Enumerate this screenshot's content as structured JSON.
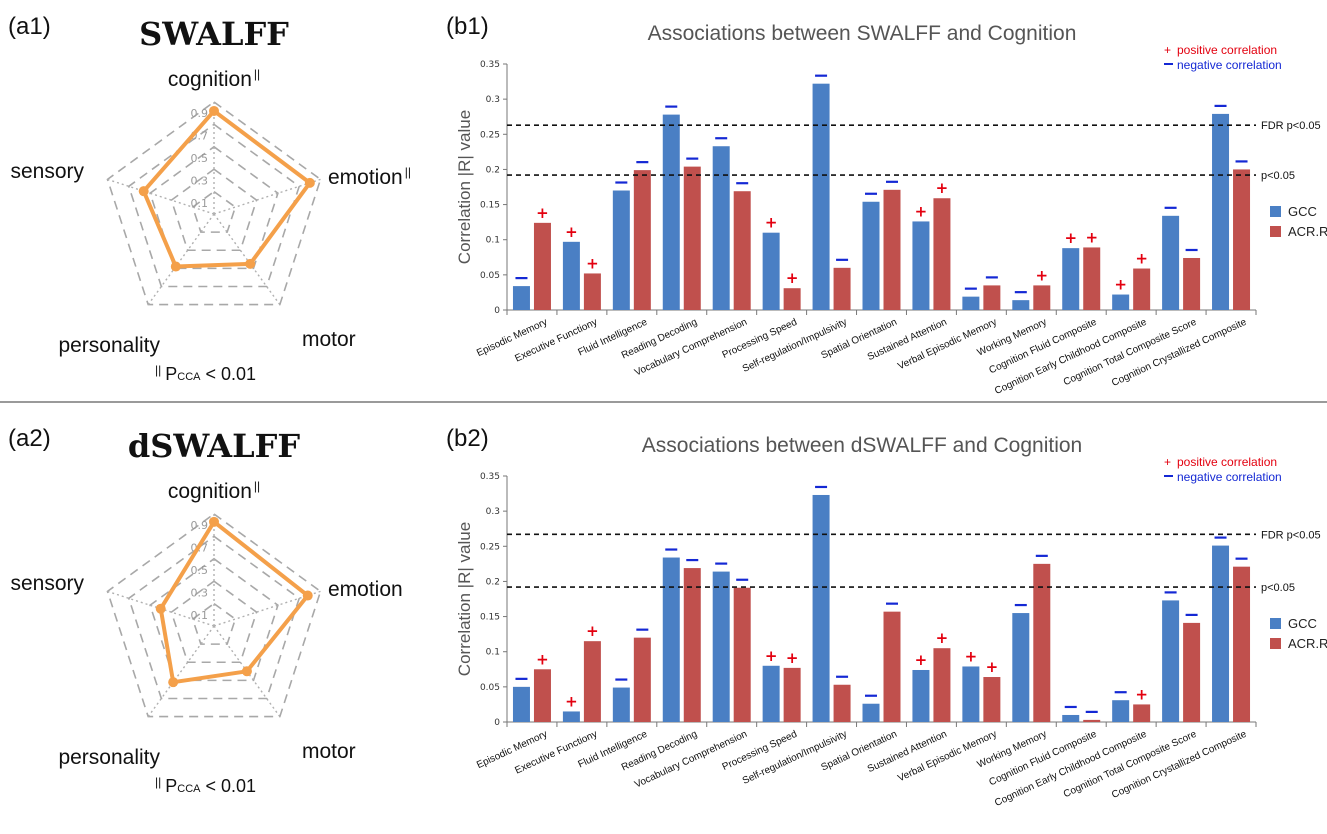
{
  "colors": {
    "gcc": "#4a7fc4",
    "acr": "#c0504d",
    "radar_line": "#f4a04a",
    "positive": "#e3000f",
    "negative": "#1428d4",
    "separator": "#9a9a9a"
  },
  "legend_keys": {
    "positive_symbol": "+",
    "positive_label": "positive correlation",
    "negative_symbol": "—",
    "negative_label": "negative correlation"
  },
  "series_names": [
    "GCC",
    "ACR.R"
  ],
  "threshold_labels": [
    "FDR p<0.05",
    "p<0.05"
  ],
  "panels": [
    {
      "radar": {
        "tag": "(a1)",
        "title": "SWALFF",
        "ring_ticks": [
          "0.9",
          "0.7",
          "0.5",
          "0.3",
          "0.1"
        ],
        "axes": [
          {
            "name": "cognition",
            "marker": "||",
            "value": 0.92
          },
          {
            "name": "emotion",
            "marker": "||",
            "value": 0.9
          },
          {
            "name": "motor",
            "marker": "",
            "value": 0.55
          },
          {
            "name": "personality",
            "marker": "",
            "value": 0.58
          },
          {
            "name": "sensory",
            "marker": "",
            "value": 0.66
          }
        ],
        "note_marker": "||",
        "note_p": "P",
        "note_sub": "CCA",
        "note_rest": " < 0.01"
      },
      "chart_data": {
        "type": "bar",
        "tag": "(b1)",
        "title": "Associations between SWALFF and Cognition",
        "ylabel": "Correlation |R| value",
        "ylim": [
          0,
          0.35
        ],
        "yticks": [
          0,
          0.05,
          0.1,
          0.15,
          0.2,
          0.25,
          0.3,
          0.35
        ],
        "categories": [
          "Episodic Memory",
          "Executive Functiony",
          "Fluid Intelligence",
          "Reading Decoding",
          "Vocabulary Comprehension",
          "Processing Speed",
          "Self-regulation/Impulsivity",
          "Spatial Orientation",
          "Sustained Attention",
          "Verbal Episodic Memory",
          "Working Memory",
          "Cognition Fluid Composite",
          "Cognition Early Childhood Composite",
          "Cognition Total Composite Score",
          "Cognition Crystallized Composite"
        ],
        "series": [
          {
            "name": "GCC",
            "values": [
              0.034,
              0.097,
              0.17,
              0.278,
              0.233,
              0.11,
              0.322,
              0.154,
              0.126,
              0.019,
              0.014,
              0.088,
              0.022,
              0.134,
              0.279
            ],
            "signs": [
              "-",
              "+",
              "-",
              "-",
              "-",
              "+",
              "-",
              "-",
              "+",
              "-",
              "-",
              "+",
              "+",
              "-",
              "-"
            ]
          },
          {
            "name": "ACR.R",
            "values": [
              0.124,
              0.052,
              0.199,
              0.204,
              0.169,
              0.031,
              0.06,
              0.171,
              0.159,
              0.035,
              0.035,
              0.089,
              0.059,
              0.074,
              0.2
            ],
            "signs": [
              "+",
              "+",
              "-",
              "-",
              "-",
              "+",
              "-",
              "-",
              "+",
              "-",
              "+",
              "+",
              "+",
              "-",
              "-"
            ]
          }
        ],
        "thresholds": [
          0.263,
          0.192
        ]
      }
    },
    {
      "radar": {
        "tag": "(a2)",
        "title": "dSWALFF",
        "ring_ticks": [
          "0.9",
          "0.7",
          "0.5",
          "0.3",
          "0.1"
        ],
        "axes": [
          {
            "name": "cognition",
            "marker": "||",
            "value": 0.93
          },
          {
            "name": "emotion",
            "marker": "",
            "value": 0.88
          },
          {
            "name": "motor",
            "marker": "",
            "value": 0.5
          },
          {
            "name": "personality",
            "marker": "",
            "value": 0.62
          },
          {
            "name": "sensory",
            "marker": "",
            "value": 0.5
          }
        ],
        "note_marker": "||",
        "note_p": "P",
        "note_sub": "CCA",
        "note_rest": " < 0.01"
      },
      "chart_data": {
        "type": "bar",
        "tag": "(b2)",
        "title": "Associations between dSWALFF and Cognition",
        "ylabel": "Correlation |R| value",
        "ylim": [
          0,
          0.35
        ],
        "yticks": [
          0,
          0.05,
          0.1,
          0.15,
          0.2,
          0.25,
          0.3,
          0.35
        ],
        "categories": [
          "Episodic Memory",
          "Executive Functiony",
          "Fluid Intelligence",
          "Reading Decoding",
          "Vocabulary Comprehension",
          "Processing Speed",
          "Self-regulation/Impulsivity",
          "Spatial Orientation",
          "Sustained Attention",
          "Verbal Episodic Memory",
          "Working Memory",
          "Cognition Fluid Composite",
          "Cognition Early Childhood Composite",
          "Cognition Total Composite Score",
          "Cognition Crystallized Composite"
        ],
        "series": [
          {
            "name": "GCC",
            "values": [
              0.05,
              0.015,
              0.049,
              0.234,
              0.214,
              0.08,
              0.323,
              0.026,
              0.074,
              0.079,
              0.155,
              0.01,
              0.031,
              0.173,
              0.251
            ],
            "signs": [
              "-",
              "+",
              "-",
              "-",
              "-",
              "+",
              "-",
              "-",
              "+",
              "+",
              "-",
              "-",
              "-",
              "-",
              "-"
            ]
          },
          {
            "name": "ACR.R",
            "values": [
              0.075,
              0.115,
              0.12,
              0.219,
              0.191,
              0.077,
              0.053,
              0.157,
              0.105,
              0.064,
              0.225,
              0.003,
              0.025,
              0.141,
              0.221
            ],
            "signs": [
              "+",
              "+",
              "-",
              "-",
              "-",
              "+",
              "-",
              "-",
              "+",
              "+",
              "-",
              "-",
              "+",
              "-",
              "-"
            ]
          }
        ],
        "thresholds": [
          0.267,
          0.192
        ]
      }
    }
  ]
}
